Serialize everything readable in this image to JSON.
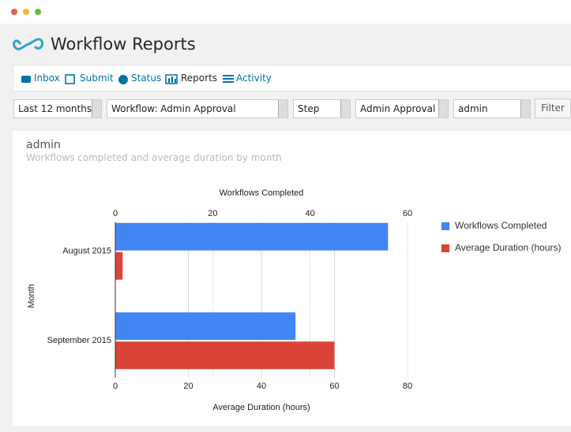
{
  "header": {
    "title": "Workflow Reports"
  },
  "nav": [
    "Inbox",
    "Submit",
    "Status",
    "Reports",
    "Activity"
  ],
  "filters": [
    "Last 12 months",
    "Workflow: Admin Approval",
    "Step",
    "Admin Approval",
    "admin"
  ],
  "filter_button": "Filter",
  "panel": {
    "title": "admin",
    "subtitle": "Workflows completed and average duration by month"
  },
  "chart_data": {
    "type": "bar",
    "orientation": "horizontal",
    "categories": [
      "August 2015",
      "September 2015"
    ],
    "series": [
      {
        "name": "Workflows Completed",
        "color": "#4285f4",
        "values": [
          56,
          37
        ],
        "axis": "x2"
      },
      {
        "name": "Average Duration (hours)",
        "color": "#db4437",
        "values": [
          2,
          60
        ],
        "axis": "x"
      }
    ],
    "xlabel": "Average Duration (hours)",
    "x2label": "Workflows Completed",
    "ylabel": "Month",
    "xlim": [
      0,
      80
    ],
    "xticks": [
      0,
      20,
      40,
      60,
      80
    ],
    "x2lim": [
      0,
      60
    ],
    "x2ticks": [
      0,
      20,
      40,
      60
    ],
    "grid": true,
    "legend": "right"
  }
}
